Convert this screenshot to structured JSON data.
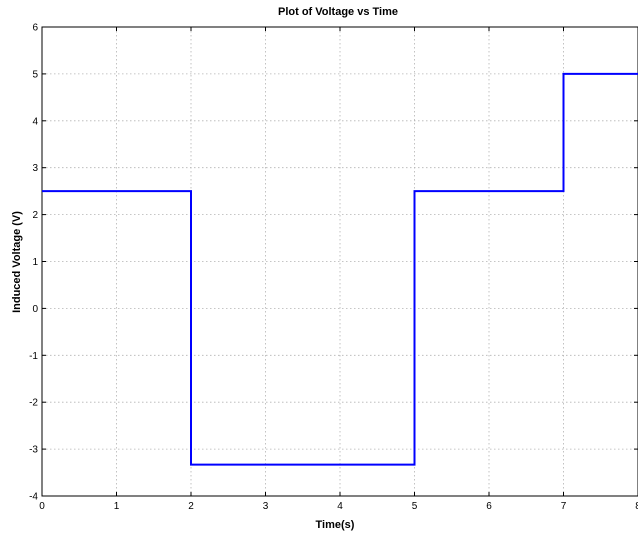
{
  "chart_data": {
    "type": "line",
    "title": "Plot of Voltage vs Time",
    "xlabel": "Time(s)",
    "ylabel": "Induced Voltage (V)",
    "xlim": [
      0,
      8
    ],
    "ylim": [
      -4,
      6
    ],
    "xticks": [
      0,
      1,
      2,
      3,
      4,
      5,
      6,
      7,
      8
    ],
    "yticks": [
      -4,
      -3,
      -2,
      -1,
      0,
      1,
      2,
      3,
      4,
      5,
      6
    ],
    "xtick_labels": [
      "0",
      "1",
      "2",
      "3",
      "4",
      "5",
      "6",
      "7",
      "8"
    ],
    "ytick_labels": [
      "-4",
      "-3",
      "-2",
      "-1",
      "0",
      "1",
      "2",
      "3",
      "4",
      "5",
      "6"
    ],
    "grid": true,
    "series": [
      {
        "color": "#0000ff",
        "x": [
          0,
          2,
          2,
          5,
          5,
          7,
          7,
          8
        ],
        "y": [
          2.5,
          2.5,
          -3.33,
          -3.33,
          2.5,
          2.5,
          5,
          5
        ]
      }
    ]
  }
}
